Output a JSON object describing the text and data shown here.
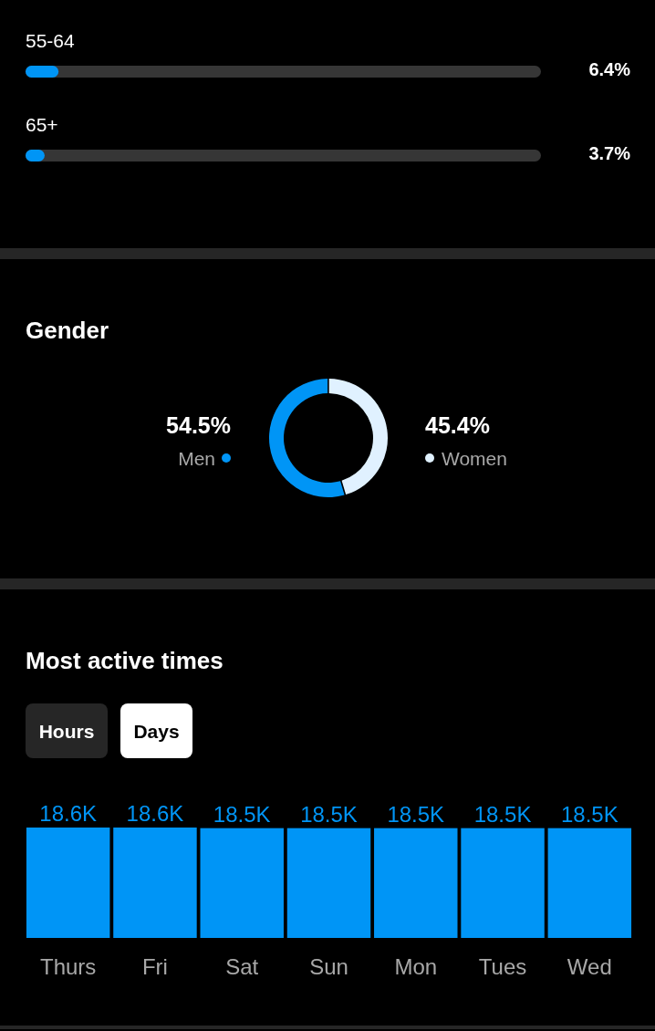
{
  "chart_data": [
    {
      "type": "bar",
      "orientation": "horizontal",
      "categories": [
        "55-64",
        "65+"
      ],
      "values": [
        6.4,
        3.7
      ],
      "value_labels": [
        "6.4%",
        "3.7%"
      ],
      "color": "#0095f6",
      "xlim": [
        0,
        100
      ],
      "tick_labels": false
    },
    {
      "type": "donut",
      "title": "Gender",
      "categories": [
        "Men",
        "Women"
      ],
      "values": [
        54.5,
        45.4
      ],
      "value_labels": [
        "54.5%",
        "45.4%"
      ],
      "colors": [
        "#0095f6",
        "#e0f1ff"
      ]
    },
    {
      "type": "bar",
      "title": "Most active times",
      "categories": [
        "Thurs",
        "Fri",
        "Sat",
        "Sun",
        "Mon",
        "Tues",
        "Wed"
      ],
      "values": [
        18.6,
        18.6,
        18.5,
        18.5,
        18.5,
        18.5,
        18.5
      ],
      "value_labels": [
        "18.6K",
        "18.6K",
        "18.5K",
        "18.5K",
        "18.5K",
        "18.5K",
        "18.5K"
      ],
      "color": "#0095f6",
      "annotations": [
        "Hours",
        "Days"
      ]
    }
  ]
}
